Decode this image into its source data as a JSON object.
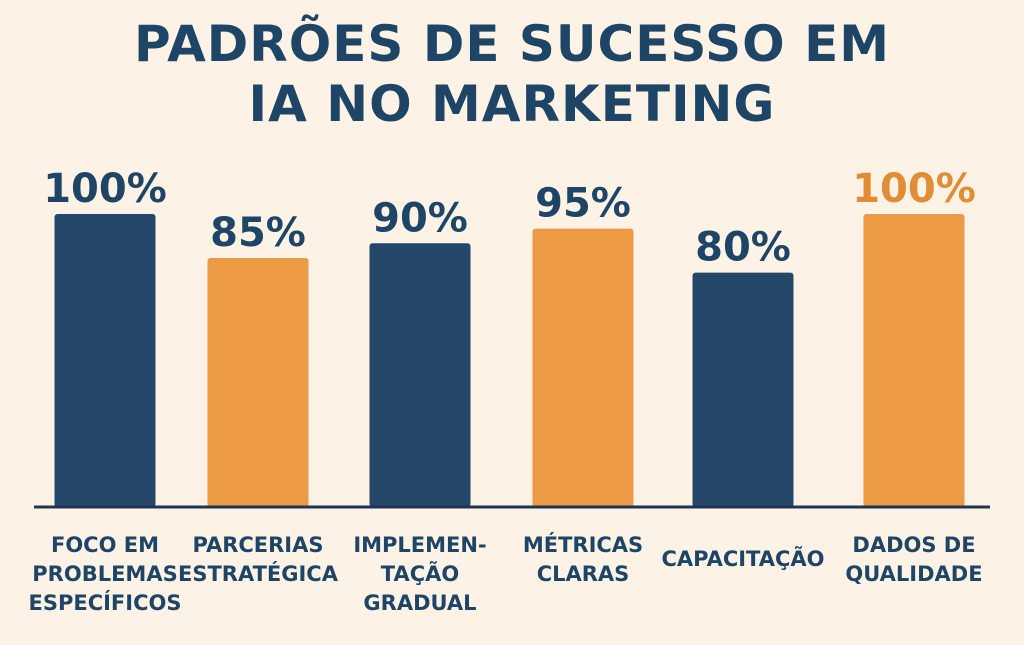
{
  "title_lines": [
    "PADRÕES DE SUCESSO EM",
    "IA NO MARKETING"
  ],
  "colors": {
    "background": "#fcf3e6",
    "navy": "#24476a",
    "orange": "#ec9a44",
    "text_navy": "#1f4566",
    "text_orange": "#e08d35",
    "axis": "#1d3550"
  },
  "chart_data": {
    "type": "bar",
    "title": "PADRÕES DE SUCESSO EM IA NO MARKETING",
    "categories": [
      "FOCO EM PROBLEMAS ESPECÍFICOS",
      "PARCERIAS ESTRATÉGICA",
      "IMPLEMEN- TAÇÃO GRADUAL",
      "MÉTRICAS CLARAS",
      "CAPACITAÇÃO",
      "DADOS DE QUALIDADE"
    ],
    "category_lines": [
      [
        "FOCO EM",
        "PROBLEMAS",
        "ESPECÍFICOS"
      ],
      [
        "PARCERIAS",
        "ESTRATÉGICA"
      ],
      [
        "IMPLEMEN-",
        "TAÇÃO",
        "GRADUAL"
      ],
      [
        "MÉTRICAS",
        "CLARAS"
      ],
      [
        "CAPACITAÇÃO"
      ],
      [
        "DADOS DE",
        "QUALIDADE"
      ]
    ],
    "values": [
      100,
      85,
      90,
      95,
      80,
      100
    ],
    "value_labels": [
      "100%",
      "85%",
      "90%",
      "95%",
      "80%",
      "100%"
    ],
    "bar_colors": [
      "navy",
      "orange",
      "navy",
      "orange",
      "navy",
      "orange"
    ],
    "label_colors": [
      "text_navy",
      "text_navy",
      "text_navy",
      "text_navy",
      "text_navy",
      "text_orange"
    ],
    "xlabel": "",
    "ylabel": "",
    "ylim": [
      0,
      100
    ],
    "grid": false,
    "legend": "none"
  }
}
